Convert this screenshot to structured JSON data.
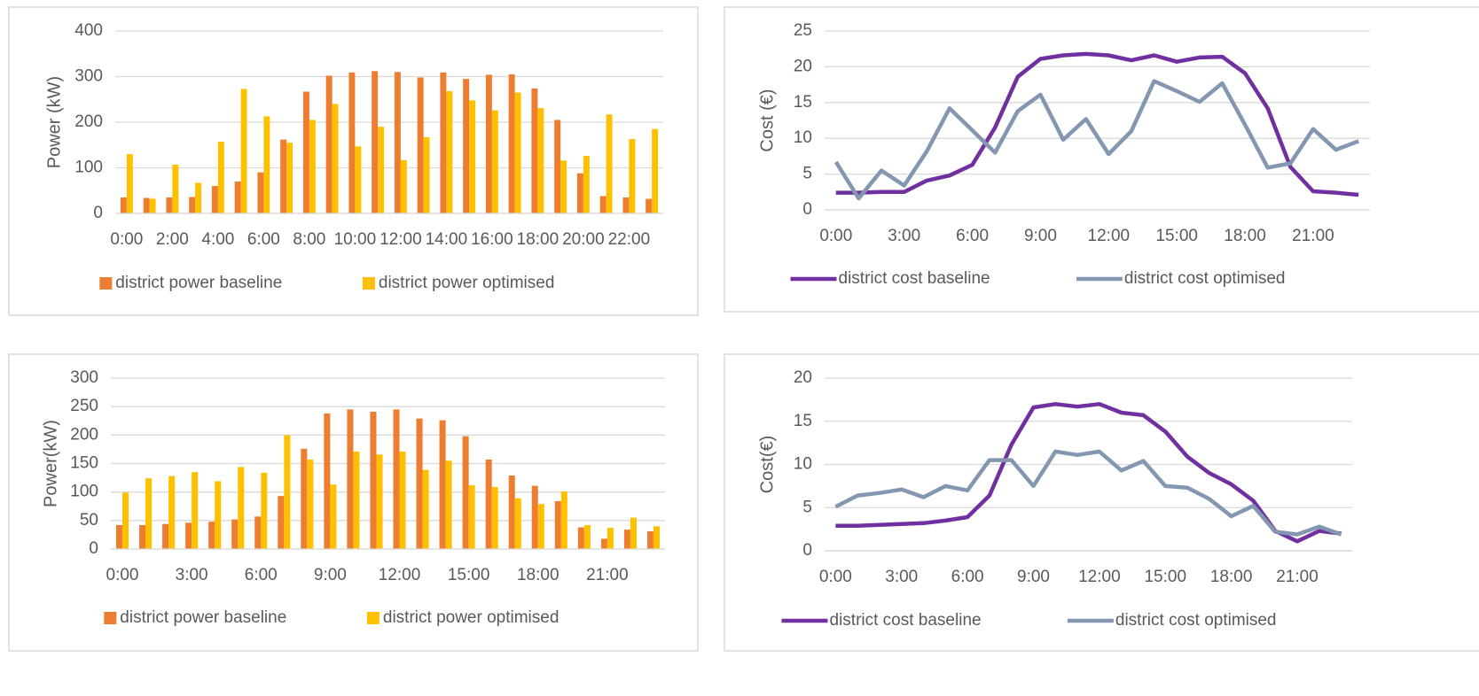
{
  "chart_data": [
    {
      "type": "bar",
      "y_label": "Power (kW)",
      "categories": [
        "0:00",
        null,
        "2:00",
        null,
        "4:00",
        null,
        "6:00",
        null,
        "8:00",
        null,
        "10:00",
        null,
        "12:00",
        null,
        "14:00",
        null,
        "16:00",
        null,
        "18:00",
        null,
        "20:00",
        null,
        "22:00",
        null
      ],
      "series": [
        {
          "name": "district power baseline",
          "color": "#ed7d31",
          "values": [
            35,
            34,
            35,
            36,
            60,
            70,
            90,
            162,
            267,
            302,
            309,
            312,
            310,
            298,
            309,
            295,
            304,
            305,
            274,
            205,
            88,
            38,
            35,
            32
          ]
        },
        {
          "name": "district power optimised",
          "color": "#ffc000",
          "values": [
            130,
            32,
            107,
            67,
            157,
            273,
            213,
            155,
            205,
            240,
            147,
            190,
            117,
            167,
            268,
            248,
            226,
            265,
            231,
            116,
            126,
            217,
            163,
            185
          ]
        }
      ],
      "ylim": [
        0,
        400
      ],
      "yticks": [
        0,
        100,
        200,
        300,
        400
      ],
      "grid": true,
      "legend": "bottom"
    },
    {
      "type": "line",
      "y_label": "Cost (€)",
      "categories": [
        "0:00",
        null,
        null,
        "3:00",
        null,
        null,
        "6:00",
        null,
        null,
        "9:00",
        null,
        null,
        "12:00",
        null,
        null,
        "15:00",
        null,
        null,
        "18:00",
        null,
        null,
        "21:00",
        null,
        null
      ],
      "series": [
        {
          "name": "district cost baseline",
          "color": "#7030a0",
          "values": [
            2.4,
            2.4,
            2.5,
            2.5,
            4.1,
            4.8,
            6.3,
            11.5,
            18.6,
            21.1,
            21.6,
            21.8,
            21.6,
            20.9,
            21.6,
            20.7,
            21.3,
            21.4,
            19.1,
            14.2,
            6.0,
            2.6,
            2.4,
            2.1
          ]
        },
        {
          "name": "district cost optimised",
          "color": "#8497b0",
          "values": [
            6.7,
            1.6,
            5.5,
            3.4,
            8.2,
            14.2,
            11.1,
            8.0,
            13.8,
            16.1,
            9.8,
            12.7,
            7.8,
            11.0,
            18.0,
            16.6,
            15.1,
            17.7,
            11.9,
            5.9,
            6.5,
            11.3,
            8.4,
            9.6
          ]
        }
      ],
      "ylim": [
        0,
        25
      ],
      "yticks": [
        0,
        5,
        10,
        15,
        20,
        25
      ],
      "grid": true,
      "legend": "bottom"
    },
    {
      "type": "bar",
      "y_label": "Power(kW)",
      "categories": [
        "0:00",
        null,
        null,
        "3:00",
        null,
        null,
        "6:00",
        null,
        null,
        "9:00",
        null,
        null,
        "12:00",
        null,
        null,
        "15:00",
        null,
        null,
        "18:00",
        null,
        null,
        "21:00",
        null,
        null
      ],
      "series": [
        {
          "name": "district power baseline",
          "color": "#ed7d31",
          "values": [
            42,
            42,
            44,
            46,
            48,
            52,
            57,
            93,
            176,
            238,
            245,
            241,
            245,
            229,
            226,
            198,
            157,
            129,
            111,
            84,
            38,
            18,
            34,
            31
          ]
        },
        {
          "name": "district power optimised",
          "color": "#ffc000",
          "values": [
            99,
            124,
            128,
            135,
            119,
            144,
            134,
            200,
            157,
            113,
            171,
            166,
            171,
            139,
            155,
            112,
            109,
            89,
            79,
            101,
            42,
            37,
            55,
            40
          ]
        }
      ],
      "ylim": [
        0,
        300
      ],
      "yticks": [
        0,
        50,
        100,
        150,
        200,
        250,
        300
      ],
      "grid": true,
      "legend": "bottom"
    },
    {
      "type": "line",
      "y_label": "Cost(€)",
      "categories": [
        "0:00",
        null,
        null,
        "3:00",
        null,
        null,
        "6:00",
        null,
        null,
        "9:00",
        null,
        null,
        "12:00",
        null,
        null,
        "15:00",
        null,
        null,
        "18:00",
        null,
        null,
        "21:00",
        null,
        null
      ],
      "series": [
        {
          "name": "district cost baseline",
          "color": "#7030a0",
          "values": [
            2.9,
            2.9,
            3.0,
            3.1,
            3.2,
            3.5,
            3.9,
            6.4,
            12.3,
            16.6,
            17.0,
            16.7,
            17.0,
            16.0,
            15.7,
            13.8,
            10.9,
            9.0,
            7.7,
            5.8,
            2.3,
            1.1,
            2.3,
            2.0
          ]
        },
        {
          "name": "district cost optimised",
          "color": "#8497b0",
          "values": [
            5.1,
            6.4,
            6.7,
            7.1,
            6.2,
            7.5,
            7.0,
            10.5,
            10.5,
            7.5,
            11.5,
            11.1,
            11.5,
            9.3,
            10.4,
            7.5,
            7.3,
            6.0,
            4.0,
            5.2,
            2.2,
            1.9,
            2.8,
            1.9
          ]
        }
      ],
      "ylim": [
        0,
        20
      ],
      "yticks": [
        0,
        5,
        10,
        15,
        20
      ],
      "grid": true,
      "legend": "bottom"
    }
  ]
}
